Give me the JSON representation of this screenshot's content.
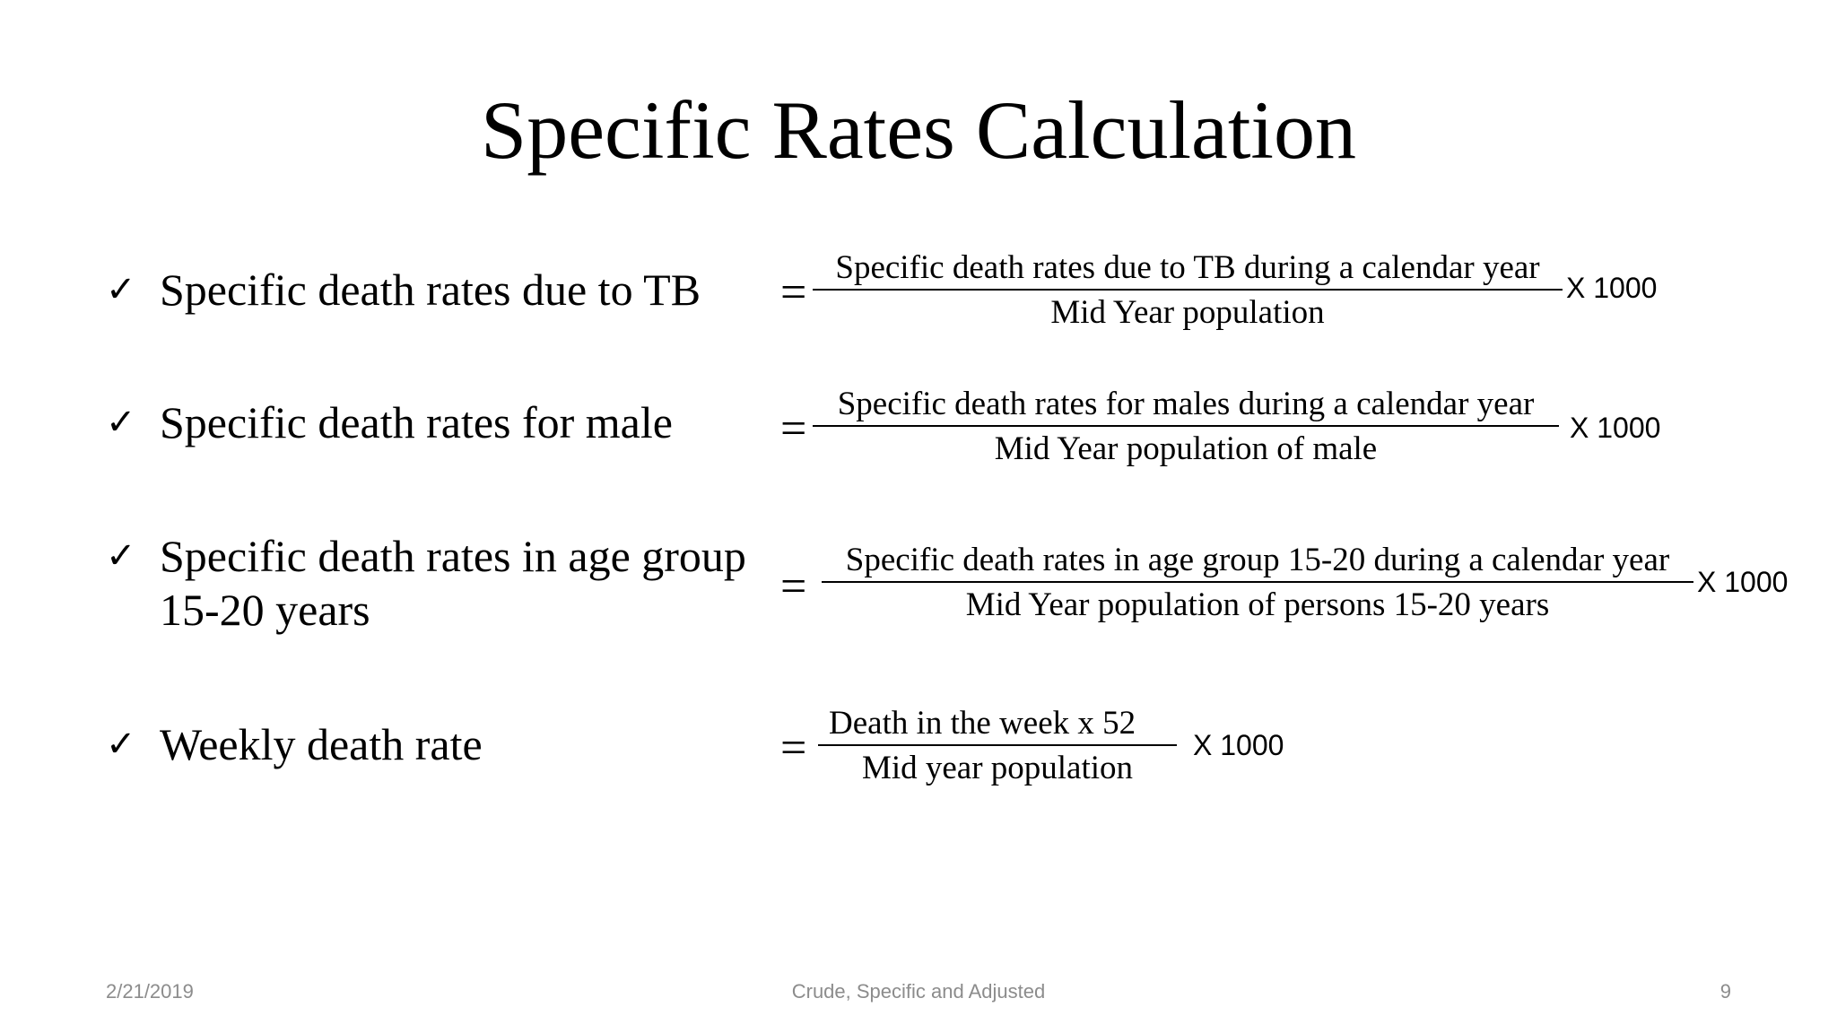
{
  "slide": {
    "title": "Specific Rates Calculation",
    "items": [
      {
        "label_lines": [
          "Specific death rates due to TB"
        ],
        "equals": "=",
        "numerator": "Specific death rates due to TB during a calendar year",
        "denominator": "Mid Year population",
        "multiplier": "X 1000"
      },
      {
        "label_lines": [
          "Specific death rates for male"
        ],
        "equals": "=",
        "numerator": "Specific death rates for males during a calendar year",
        "denominator": "Mid Year population of male",
        "multiplier": "X 1000"
      },
      {
        "label_lines": [
          "Specific death rates in age group",
          "15-20 years"
        ],
        "equals": "=",
        "numerator": "Specific death rates in age group 15-20 during a calendar year",
        "denominator": "Mid Year population of persons 15-20 years",
        "multiplier": "X 1000"
      },
      {
        "label_lines": [
          "Weekly death rate"
        ],
        "equals": "=",
        "numerator": "Death in the week  x 52",
        "denominator": "Mid year population",
        "multiplier": "X 1000"
      }
    ],
    "bullet_icon": "checkmark-icon",
    "footer": {
      "date": "2/21/2019",
      "center": "Crude, Specific and Adjusted",
      "page_number": "9"
    }
  }
}
